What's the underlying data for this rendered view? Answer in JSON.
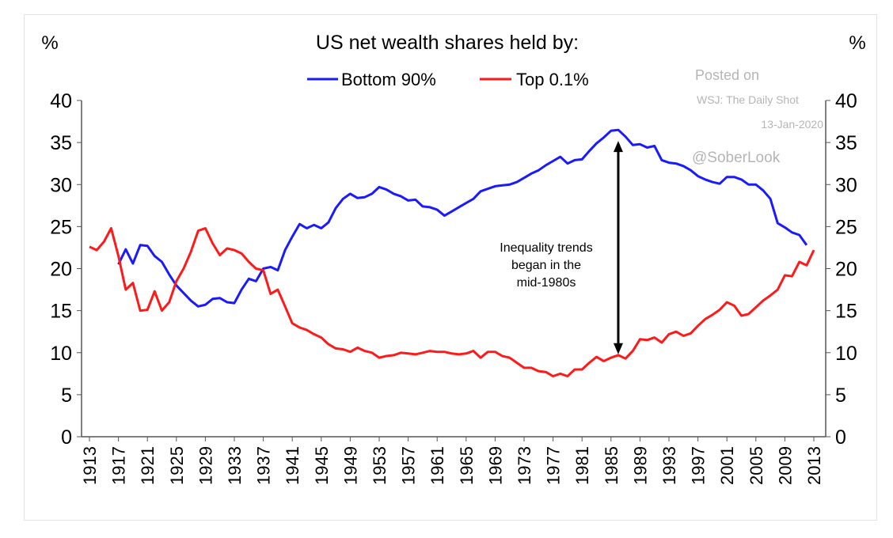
{
  "chart_data": {
    "type": "line",
    "title": "US net wealth shares held by:",
    "ylabel_left": "%",
    "ylabel_right": "%",
    "ylim": [
      0,
      40
    ],
    "yticks": [
      0,
      5,
      10,
      15,
      20,
      25,
      30,
      35,
      40
    ],
    "xlim": [
      1913,
      2013
    ],
    "xticks": [
      1913,
      1917,
      1921,
      1925,
      1929,
      1933,
      1937,
      1941,
      1945,
      1949,
      1953,
      1957,
      1961,
      1965,
      1969,
      1973,
      1977,
      1981,
      1985,
      1989,
      1993,
      1997,
      2001,
      2005,
      2009,
      2013
    ],
    "legend_placement": "top-center",
    "grid": false,
    "series": [
      {
        "name": "Bottom 90%",
        "color": "#1a1aff",
        "start_year": 1917,
        "values": [
          20.5,
          22.3,
          20.6,
          22.8,
          22.7,
          21.5,
          20.8,
          19.3,
          18.0,
          17.1,
          16.2,
          15.5,
          15.7,
          16.4,
          16.5,
          16.0,
          15.9,
          17.5,
          18.8,
          18.5,
          20.0,
          20.2,
          19.8,
          22.2,
          23.8,
          25.3,
          24.8,
          25.2,
          24.8,
          25.5,
          27.2,
          28.3,
          28.9,
          28.4,
          28.5,
          28.9,
          29.7,
          29.4,
          28.9,
          28.6,
          28.1,
          28.2,
          27.4,
          27.3,
          27.0,
          26.3,
          26.8,
          27.3,
          27.8,
          28.3,
          29.2,
          29.5,
          29.8,
          29.9,
          30.0,
          30.3,
          30.8,
          31.3,
          31.7,
          32.3,
          32.8,
          33.3,
          32.5,
          32.9,
          33.0,
          34.0,
          34.9,
          35.6,
          36.4,
          36.5,
          35.7,
          34.7,
          34.8,
          34.4,
          34.6,
          32.9,
          32.6,
          32.5,
          32.2,
          31.7,
          31.0,
          30.6,
          30.3,
          30.1,
          30.9,
          30.9,
          30.6,
          30.0,
          30.0,
          29.3,
          28.3,
          25.4,
          24.9,
          24.3,
          24.0,
          22.8
        ]
      },
      {
        "name": "Top 0.1%",
        "color": "#ff1a1a",
        "start_year": 1913,
        "values": [
          22.6,
          22.2,
          23.2,
          24.8,
          21.5,
          17.5,
          18.3,
          15.0,
          15.1,
          17.3,
          15.0,
          16.0,
          18.5,
          20.0,
          22.0,
          24.5,
          24.8,
          23.0,
          21.6,
          22.4,
          22.2,
          21.8,
          20.8,
          20.0,
          19.8,
          17.0,
          17.5,
          15.5,
          13.5,
          13.0,
          12.7,
          12.2,
          11.8,
          11.0,
          10.5,
          10.4,
          10.1,
          10.6,
          10.2,
          10.0,
          9.4,
          9.6,
          9.7,
          10.0,
          9.9,
          9.8,
          10.0,
          10.2,
          10.1,
          10.1,
          9.9,
          9.8,
          9.9,
          10.2,
          9.4,
          10.1,
          10.1,
          9.6,
          9.4,
          8.8,
          8.2,
          8.2,
          7.8,
          7.7,
          7.2,
          7.5,
          7.2,
          8.0,
          8.0,
          8.8,
          9.5,
          9.0,
          9.4,
          9.7,
          9.3,
          10.2,
          11.6,
          11.5,
          11.8,
          11.2,
          12.2,
          12.5,
          12.0,
          12.3,
          13.2,
          14.0,
          14.5,
          15.1,
          16.0,
          15.6,
          14.4,
          14.6,
          15.4,
          16.2,
          16.8,
          17.5,
          19.2,
          19.1,
          20.8,
          20.4,
          22.2
        ]
      }
    ],
    "annotation": {
      "lines": [
        "Inequality trends",
        "began in the",
        "mid-1980s"
      ],
      "arrow_year": 1986,
      "arrow_from": 35,
      "arrow_to": 10
    },
    "watermark": {
      "posted": "Posted on",
      "source": "WSJ: The Daily Shot",
      "date": "13-Jan-2020",
      "handle": "@SoberLook"
    }
  }
}
